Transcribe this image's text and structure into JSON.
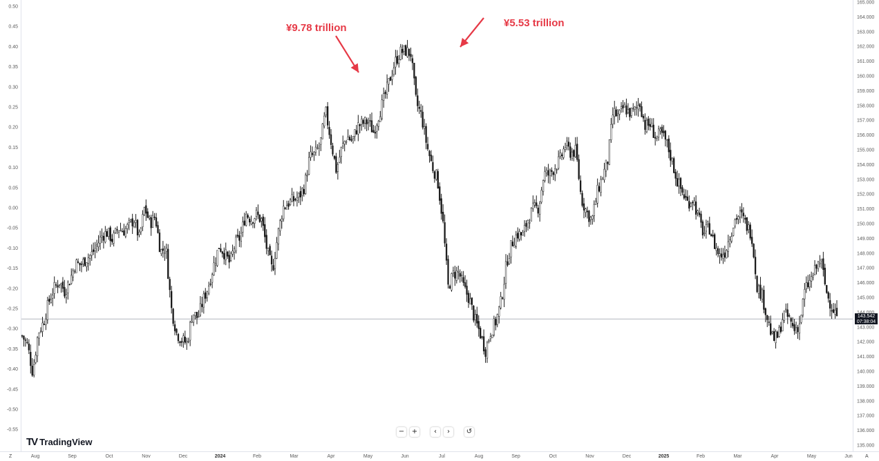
{
  "chart_data": {
    "type": "candlestick",
    "left_axis": {
      "ticks": [
        "0.50",
        "0.45",
        "0.40",
        "0.35",
        "0.30",
        "0.25",
        "0.20",
        "0.15",
        "0.10",
        "0.05",
        "0.00",
        "-0.05",
        "-0.10",
        "-0.15",
        "-0.20",
        "-0.25",
        "-0.30",
        "-0.35",
        "-0.40",
        "-0.45",
        "-0.50",
        "-0.55"
      ]
    },
    "right_axis": {
      "ticks": [
        "165.000",
        "164.000",
        "163.000",
        "162.000",
        "161.000",
        "160.000",
        "159.000",
        "158.000",
        "157.000",
        "156.000",
        "155.000",
        "154.000",
        "153.000",
        "152.000",
        "151.000",
        "150.000",
        "149.000",
        "148.000",
        "147.000",
        "146.000",
        "145.000",
        "144.000",
        "143.000",
        "142.000",
        "141.000",
        "140.000",
        "139.000",
        "138.000",
        "137.000",
        "136.000",
        "135.000"
      ],
      "ylim": [
        135,
        165
      ]
    },
    "x_axis": {
      "labels": [
        {
          "text": "Aug",
          "major": false
        },
        {
          "text": "Sep",
          "major": false
        },
        {
          "text": "Oct",
          "major": false
        },
        {
          "text": "Nov",
          "major": false
        },
        {
          "text": "Dec",
          "major": false
        },
        {
          "text": "2024",
          "major": true
        },
        {
          "text": "Feb",
          "major": false
        },
        {
          "text": "Mar",
          "major": false
        },
        {
          "text": "Apr",
          "major": false
        },
        {
          "text": "May",
          "major": false
        },
        {
          "text": "Jun",
          "major": false
        },
        {
          "text": "Jul",
          "major": false
        },
        {
          "text": "Aug",
          "major": false
        },
        {
          "text": "Sep",
          "major": false
        },
        {
          "text": "Oct",
          "major": false
        },
        {
          "text": "Nov",
          "major": false
        },
        {
          "text": "Dec",
          "major": false
        },
        {
          "text": "2025",
          "major": true
        },
        {
          "text": "Feb",
          "major": false
        },
        {
          "text": "Mar",
          "major": false
        },
        {
          "text": "Apr",
          "major": false
        },
        {
          "text": "May",
          "major": false
        },
        {
          "text": "Jun",
          "major": false
        }
      ]
    },
    "price_path": [
      142.4,
      141.8,
      139.9,
      142.6,
      143.3,
      144.7,
      145.6,
      146.1,
      145.4,
      146.2,
      147.3,
      147.2,
      147.6,
      147.9,
      148.5,
      149.2,
      149.4,
      148.9,
      149.7,
      149.5,
      149.8,
      150.3,
      149.0,
      151.1,
      150.0,
      150.5,
      148.1,
      148.4,
      144.3,
      142.6,
      142.1,
      141.9,
      144.0,
      143.6,
      144.8,
      145.8,
      147.2,
      148.5,
      148.0,
      147.3,
      148.6,
      149.1,
      150.7,
      150.3,
      150.6,
      150.2,
      148.2,
      146.8,
      149.2,
      151.1,
      151.4,
      151.6,
      151.8,
      152.5,
      154.5,
      154.7,
      155.4,
      157.6,
      155.6,
      153.6,
      155.1,
      155.9,
      155.6,
      156.6,
      156.8,
      156.9,
      156.2,
      157.4,
      158.5,
      159.7,
      160.9,
      161.6,
      161.7,
      161.5,
      158.2,
      157.3,
      155.3,
      153.9,
      153.0,
      150.2,
      145.7,
      146.6,
      146.7,
      145.6,
      144.9,
      143.5,
      142.6,
      141.4,
      142.7,
      143.4,
      144.8,
      147.4,
      148.7,
      149.3,
      149.2,
      150.3,
      151.0,
      151.1,
      153.4,
      153.3,
      153.8,
      154.3,
      155.3,
      154.8,
      154.9,
      151.7,
      150.8,
      150.2,
      152.1,
      153.2,
      154.3,
      157.6,
      157.2,
      157.9,
      157.5,
      157.6,
      158.2,
      156.6,
      156.7,
      155.8,
      156.1,
      155.5,
      154.3,
      152.9,
      152.1,
      151.4,
      151.7,
      150.4,
      149.3,
      149.8,
      148.6,
      147.8,
      148.1,
      149.3,
      150.4,
      150.6,
      149.9,
      149.3,
      145.8,
      145.1,
      143.5,
      142.1,
      142.4,
      143.9,
      143.6,
      142.8,
      143.2,
      145.5,
      146.1,
      146.9,
      147.6,
      145.4,
      144.4,
      143.8
    ],
    "last_price": "143.542",
    "countdown": "07:38:04",
    "annotations": [
      {
        "text": "¥9.78 trillion"
      },
      {
        "text": "¥5.53 trillion"
      }
    ]
  },
  "branding": {
    "logo_mark": "TV",
    "logo_text": "TradingView"
  },
  "navigation": {
    "zoom_out": "−",
    "zoom_in": "+",
    "scroll_left": "‹",
    "scroll_right": "›",
    "reset": "↺"
  },
  "corners": {
    "bottom_left": "Z",
    "bottom_right": "A"
  },
  "colors": {
    "candle": "#1a1a1a",
    "annotation": "#e63946",
    "price_line": "#b2b5be",
    "tag_bg": "#131722"
  }
}
